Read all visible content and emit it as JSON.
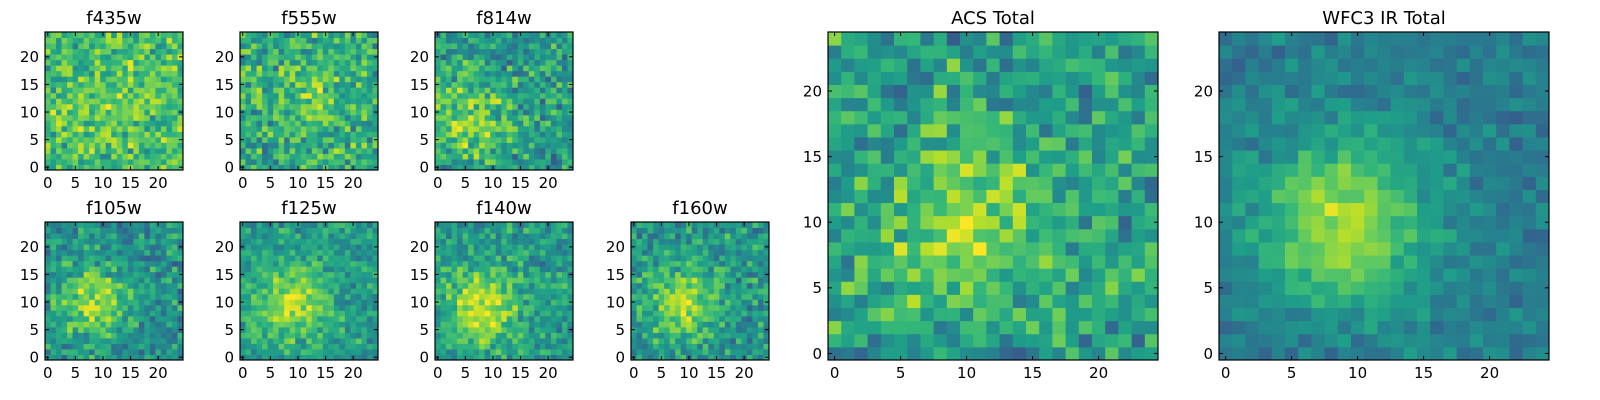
{
  "figure": {
    "background": "#ffffff"
  },
  "colormap": {
    "name": "viridis",
    "low": "#440154",
    "high": "#fde725"
  },
  "chart_data": [
    {
      "type": "heatmap",
      "title": "f435w",
      "grid": [
        25,
        25
      ],
      "xlim": [
        0,
        24
      ],
      "ylim": [
        0,
        24
      ],
      "xticks": [
        "0",
        "5",
        "10",
        "15",
        "20"
      ],
      "yticks": [
        "0",
        "5",
        "10",
        "15",
        "20"
      ],
      "origin": "lower",
      "peak": [
        10,
        10
      ],
      "peak_strength": 0.05,
      "mean_level": 0.7,
      "noise": 0.28,
      "seed": 11
    },
    {
      "type": "heatmap",
      "title": "f555w",
      "grid": [
        25,
        25
      ],
      "xlim": [
        0,
        24
      ],
      "ylim": [
        0,
        24
      ],
      "xticks": [
        "0",
        "5",
        "10",
        "15",
        "20"
      ],
      "yticks": [
        "0",
        "5",
        "10",
        "15",
        "20"
      ],
      "origin": "lower",
      "peak": [
        12,
        12
      ],
      "peak_strength": 0.12,
      "mean_level": 0.62,
      "noise": 0.3,
      "seed": 23
    },
    {
      "type": "heatmap",
      "title": "f814w",
      "grid": [
        25,
        25
      ],
      "xlim": [
        0,
        24
      ],
      "ylim": [
        0,
        24
      ],
      "xticks": [
        "0",
        "5",
        "10",
        "15",
        "20"
      ],
      "yticks": [
        "0",
        "5",
        "10",
        "15",
        "20"
      ],
      "origin": "lower",
      "peak": [
        6,
        9
      ],
      "peak_strength": 0.3,
      "mean_level": 0.55,
      "noise": 0.3,
      "seed": 37
    },
    {
      "type": "heatmap",
      "title": "f105w",
      "grid": [
        25,
        25
      ],
      "xlim": [
        0,
        24
      ],
      "ylim": [
        0,
        24
      ],
      "xticks": [
        "0",
        "5",
        "10",
        "15",
        "20"
      ],
      "yticks": [
        "0",
        "5",
        "10",
        "15",
        "20"
      ],
      "origin": "lower",
      "peak": [
        8,
        10
      ],
      "peak_strength": 0.35,
      "mean_level": 0.5,
      "noise": 0.25,
      "seed": 41
    },
    {
      "type": "heatmap",
      "title": "f125w",
      "grid": [
        25,
        25
      ],
      "xlim": [
        0,
        24
      ],
      "ylim": [
        0,
        24
      ],
      "xticks": [
        "0",
        "5",
        "10",
        "15",
        "20"
      ],
      "yticks": [
        "0",
        "5",
        "10",
        "15",
        "20"
      ],
      "origin": "lower",
      "peak": [
        9,
        10
      ],
      "peak_strength": 0.35,
      "mean_level": 0.55,
      "noise": 0.22,
      "seed": 53
    },
    {
      "type": "heatmap",
      "title": "f140w",
      "grid": [
        25,
        25
      ],
      "xlim": [
        0,
        24
      ],
      "ylim": [
        0,
        24
      ],
      "xticks": [
        "0",
        "5",
        "10",
        "15",
        "20"
      ],
      "yticks": [
        "0",
        "5",
        "10",
        "15",
        "20"
      ],
      "origin": "lower",
      "peak": [
        8,
        9
      ],
      "peak_strength": 0.38,
      "mean_level": 0.55,
      "noise": 0.22,
      "seed": 67
    },
    {
      "type": "heatmap",
      "title": "f160w",
      "grid": [
        25,
        25
      ],
      "xlim": [
        0,
        24
      ],
      "ylim": [
        0,
        24
      ],
      "xticks": [
        "0",
        "5",
        "10",
        "15",
        "20"
      ],
      "yticks": [
        "0",
        "5",
        "10",
        "15",
        "20"
      ],
      "origin": "lower",
      "peak": [
        9,
        10
      ],
      "peak_strength": 0.35,
      "mean_level": 0.52,
      "noise": 0.25,
      "seed": 79
    },
    {
      "type": "heatmap",
      "title": "ACS Total",
      "grid": [
        25,
        25
      ],
      "xlim": [
        0,
        24
      ],
      "ylim": [
        0,
        24
      ],
      "xticks": [
        "0",
        "5",
        "10",
        "15",
        "20"
      ],
      "yticks": [
        "0",
        "5",
        "10",
        "15",
        "20"
      ],
      "origin": "lower",
      "peak": [
        10,
        10
      ],
      "peak_strength": 0.3,
      "mean_level": 0.55,
      "noise": 0.28,
      "seed": 97
    },
    {
      "type": "heatmap",
      "title": "WFC3 IR Total",
      "grid": [
        25,
        25
      ],
      "xlim": [
        0,
        24
      ],
      "ylim": [
        0,
        24
      ],
      "xticks": [
        "0",
        "5",
        "10",
        "15",
        "20"
      ],
      "yticks": [
        "0",
        "5",
        "10",
        "15",
        "20"
      ],
      "origin": "lower",
      "peak": [
        9,
        10
      ],
      "peak_strength": 0.45,
      "mean_level": 0.42,
      "noise": 0.14,
      "seed": 113
    }
  ]
}
